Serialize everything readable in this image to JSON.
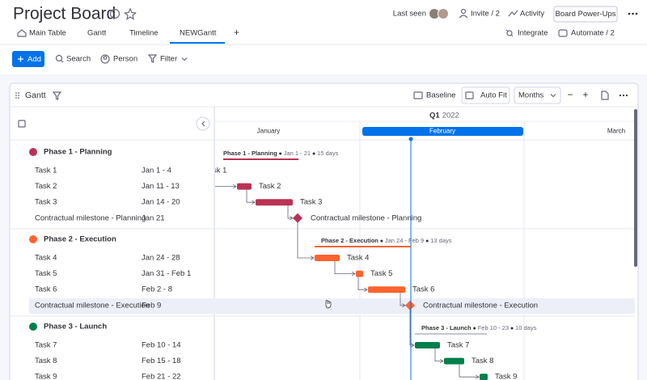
{
  "header": {
    "title": "Project Board",
    "last_seen": "Last seen",
    "invite": "Invite / 2",
    "activity": "Activity",
    "power_ups": "Board Power-Ups"
  },
  "tabs": [
    "Main Table",
    "Gantt",
    "Timeline",
    "NEWGantt"
  ],
  "add_tab": "+",
  "integrate": "Integrate",
  "automate": "Automate / 2",
  "toolbar": {
    "add": "Add",
    "search": "Search",
    "person": "Person",
    "filter": "Filter"
  },
  "gantt": {
    "title": "Gantt",
    "baseline": "Baseline",
    "auto_fit": "Auto Fit",
    "zoom": "Months",
    "zoom_out": "−",
    "zoom_in": "+",
    "quarter": "Q1",
    "year": "2022",
    "months": [
      "January",
      "February",
      "March"
    ],
    "groups": [
      {
        "name": "Phase 1 - Planning",
        "color": "#bb3354",
        "dates": "Jan 1 - 21",
        "duration": "15 days",
        "items": [
          {
            "name": "Task 1",
            "dates": "Jan 1 - 4"
          },
          {
            "name": "Task 2",
            "dates": "Jan 11 - 13"
          },
          {
            "name": "Task 3",
            "dates": "Jan 14 - 20"
          },
          {
            "name": "Contractual milestone - Planning",
            "dates": "Jan 21"
          }
        ]
      },
      {
        "name": "Phase 2 - Execution",
        "color": "#ff642e",
        "dates": "Jan 24 - Feb 9",
        "duration": "13 days",
        "items": [
          {
            "name": "Task 4",
            "dates": "Jan 24 - 28"
          },
          {
            "name": "Task 5",
            "dates": "Jan 31 - Feb 1"
          },
          {
            "name": "Task 6",
            "dates": "Feb 2 - 8"
          },
          {
            "name": "Contractual milestone - Execution",
            "dates": "Feb 9"
          }
        ]
      },
      {
        "name": "Phase 3 - Launch",
        "color": "#037f4c",
        "dates": "Feb 10 - 23",
        "duration": "10 days",
        "items": [
          {
            "name": "Task 7",
            "dates": "Feb 10 - 14"
          },
          {
            "name": "Task 8",
            "dates": "Feb 15 - 18"
          },
          {
            "name": "Task 9",
            "dates": "Feb 21 - 22"
          }
        ]
      }
    ]
  }
}
